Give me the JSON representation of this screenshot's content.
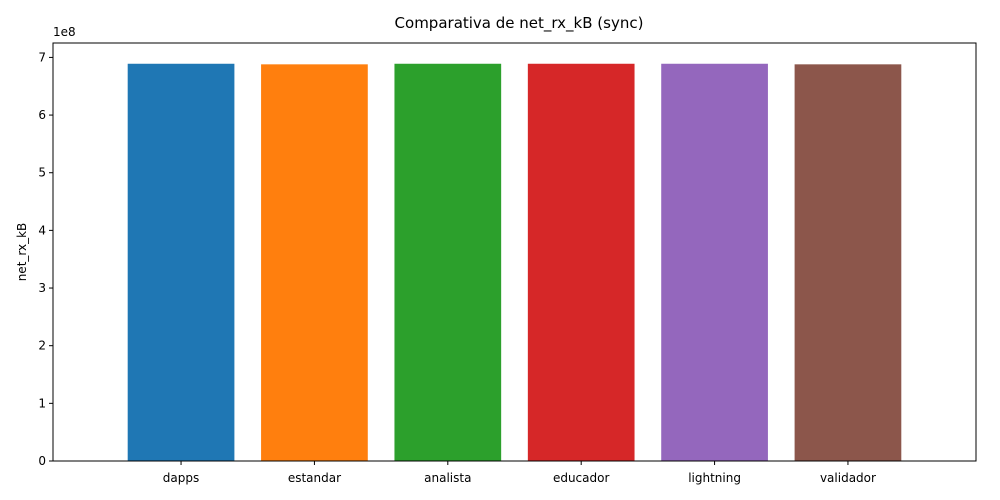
{
  "chart_data": {
    "type": "bar",
    "title": "Comparativa de net_rx_kB (sync)",
    "xlabel": "",
    "ylabel": "net_rx_kB",
    "y_offset_label": "1e8",
    "y_scale": 100000000,
    "ylim": [
      0,
      725000000
    ],
    "yticks": [
      0,
      100000000,
      200000000,
      300000000,
      400000000,
      500000000,
      600000000,
      700000000
    ],
    "ytick_labels": [
      "0",
      "1",
      "2",
      "3",
      "4",
      "5",
      "6",
      "7"
    ],
    "categories": [
      "dapps",
      "estandar",
      "analista",
      "educador",
      "lightning",
      "validador"
    ],
    "values": [
      689000000,
      688000000,
      689000000,
      689000000,
      689000000,
      688000000
    ],
    "colors": [
      "#1f77b4",
      "#ff7f0e",
      "#2ca02c",
      "#d62728",
      "#9467bd",
      "#8c564b"
    ],
    "grid": false,
    "legend": "none"
  }
}
